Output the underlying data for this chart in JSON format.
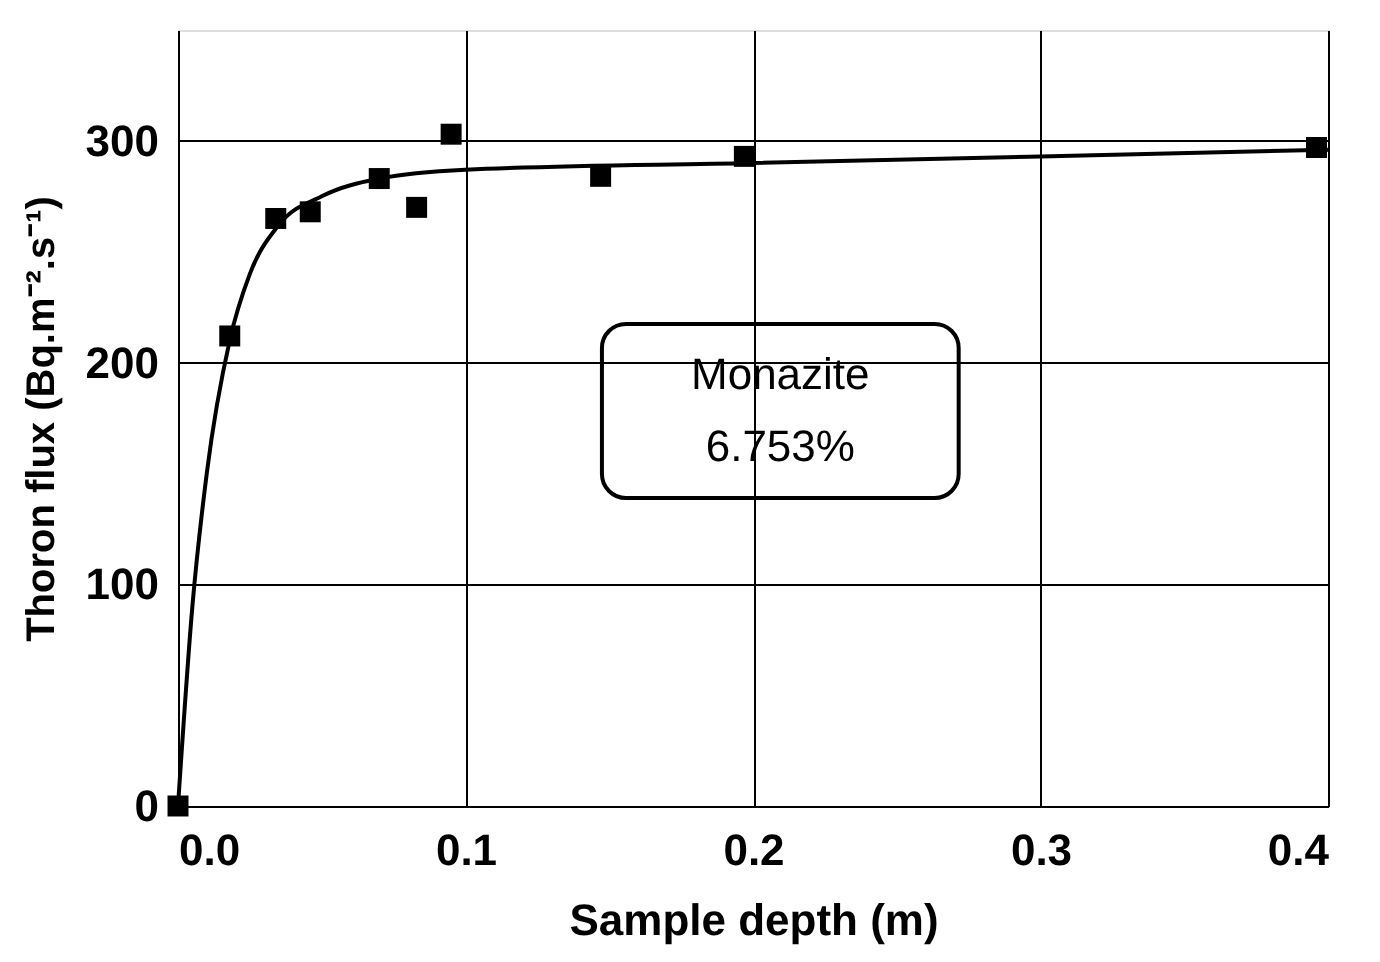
{
  "chart_data": {
    "type": "scatter",
    "xlabel": "Sample depth (m)",
    "ylabel": "Thoron flux (Bq.m⁻².s⁻¹)",
    "xlim": [
      0,
      0.4
    ],
    "xticks": [
      {
        "value": 0,
        "label": "0.0"
      },
      0.1,
      0.2,
      0.3,
      0.4
    ],
    "ylim": [
      0,
      350
    ],
    "yticks": [
      0,
      100,
      200,
      300
    ],
    "grid": true,
    "series": [
      {
        "type": "scatter",
        "marker": "square",
        "color": "#000000",
        "x": [
          0,
          0.018,
          0.034,
          0.046,
          0.07,
          0.083,
          0.095,
          0.147,
          0.197,
          0.396
        ],
        "values": [
          0,
          212,
          265,
          268,
          283,
          270,
          303,
          284,
          293,
          297
        ]
      },
      {
        "type": "line",
        "marker": "none",
        "line_style": "solid",
        "color": "#000000",
        "x": [
          0,
          0.005,
          0.01,
          0.018,
          0.025,
          0.035,
          0.05,
          0.07,
          0.1,
          0.2,
          0.4
        ],
        "values": [
          0,
          90,
          150,
          210,
          240,
          262,
          275,
          283,
          287,
          290,
          296
        ]
      }
    ],
    "annotations": [
      "Monazite\n6.753%"
    ]
  }
}
